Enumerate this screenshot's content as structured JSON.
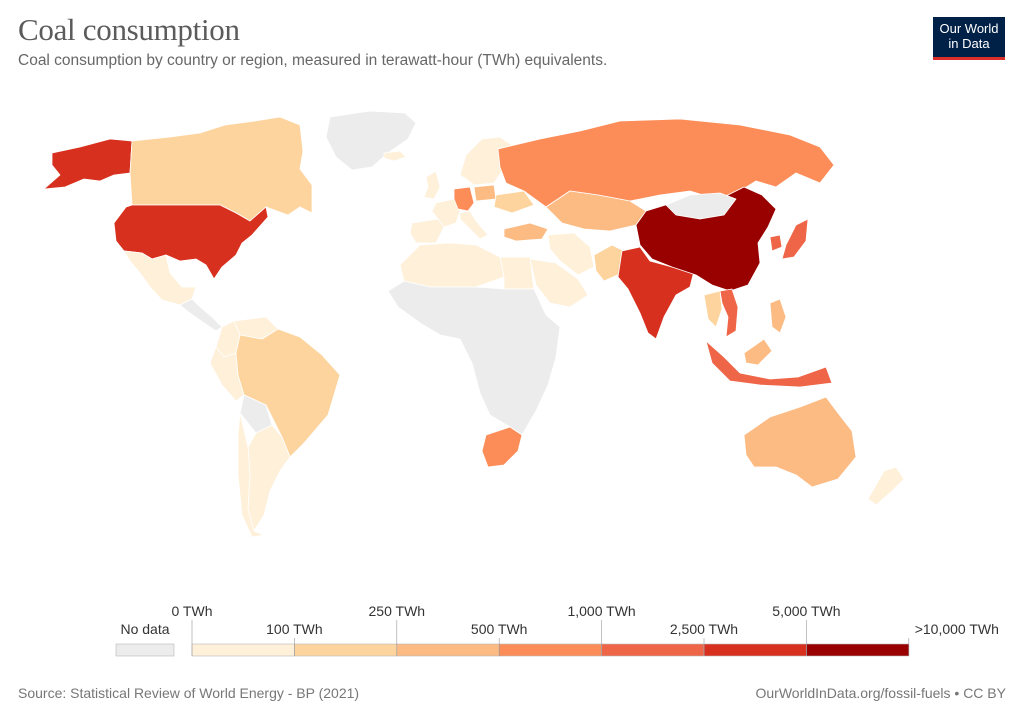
{
  "header": {
    "title": "Coal consumption",
    "subtitle": "Coal consumption by country or region, measured in terawatt-hour (TWh) equivalents.",
    "logo_line1": "Our World",
    "logo_line2": "in Data"
  },
  "footer": {
    "source": "Source: Statistical Review of World Energy - BP (2021)",
    "link": "OurWorldInData.org/fossil-fuels • CC BY"
  },
  "colors": {
    "no_data": "#ececec",
    "bins": [
      "#fef0d9",
      "#fdd49e",
      "#fdbb84",
      "#fc8d59",
      "#ef6548",
      "#d7301f",
      "#990000"
    ]
  },
  "legend": {
    "no_data_label": "No data",
    "bins": [
      {
        "lower": "0 TWh",
        "upper": "100 TWh"
      },
      {
        "lower": "100 TWh",
        "upper": "250 TWh"
      },
      {
        "lower": "250 TWh",
        "upper": "500 TWh"
      },
      {
        "lower": "500 TWh",
        "upper": "1,000 TWh"
      },
      {
        "lower": "1,000 TWh",
        "upper": "2,500 TWh"
      },
      {
        "lower": "2,500 TWh",
        "upper": "5,000 TWh"
      },
      {
        "lower": "5,000 TWh",
        "upper": ">10,000 TWh"
      }
    ]
  },
  "regions": [
    {
      "name": "Greenland",
      "bin": -1
    },
    {
      "name": "Alaska",
      "bin": 5
    },
    {
      "name": "Canada",
      "bin": 1
    },
    {
      "name": "United States",
      "bin": 5
    },
    {
      "name": "Mexico",
      "bin": 0
    },
    {
      "name": "Central America",
      "bin": -1
    },
    {
      "name": "Colombia",
      "bin": 0
    },
    {
      "name": "Venezuela",
      "bin": 0
    },
    {
      "name": "Peru",
      "bin": 0
    },
    {
      "name": "Brazil",
      "bin": 1
    },
    {
      "name": "Bolivia",
      "bin": -1
    },
    {
      "name": "Argentina",
      "bin": 0
    },
    {
      "name": "Chile",
      "bin": 0
    },
    {
      "name": "Iceland",
      "bin": 0
    },
    {
      "name": "United Kingdom",
      "bin": 0
    },
    {
      "name": "Spain",
      "bin": 0
    },
    {
      "name": "France",
      "bin": 0
    },
    {
      "name": "Germany",
      "bin": 3
    },
    {
      "name": "Italy",
      "bin": 0
    },
    {
      "name": "Poland",
      "bin": 2
    },
    {
      "name": "Scandinavia",
      "bin": 0
    },
    {
      "name": "Ukraine",
      "bin": 1
    },
    {
      "name": "Turkey",
      "bin": 2
    },
    {
      "name": "Russia",
      "bin": 3
    },
    {
      "name": "Kazakhstan",
      "bin": 2
    },
    {
      "name": "Iran",
      "bin": 0
    },
    {
      "name": "Saudi Arabia",
      "bin": 0
    },
    {
      "name": "Pakistan",
      "bin": 1
    },
    {
      "name": "India",
      "bin": 5
    },
    {
      "name": "China",
      "bin": 6
    },
    {
      "name": "Mongolia",
      "bin": -1
    },
    {
      "name": "Japan",
      "bin": 4
    },
    {
      "name": "South Korea",
      "bin": 4
    },
    {
      "name": "Vietnam",
      "bin": 4
    },
    {
      "name": "Thailand",
      "bin": 1
    },
    {
      "name": "Philippines",
      "bin": 2
    },
    {
      "name": "Indonesia",
      "bin": 4
    },
    {
      "name": "Malaysia",
      "bin": 2
    },
    {
      "name": "Australia",
      "bin": 2
    },
    {
      "name": "New Zealand",
      "bin": 0
    },
    {
      "name": "North Africa",
      "bin": 0
    },
    {
      "name": "Egypt",
      "bin": 0
    },
    {
      "name": "Africa",
      "bin": -1
    },
    {
      "name": "South Africa",
      "bin": 3
    }
  ]
}
